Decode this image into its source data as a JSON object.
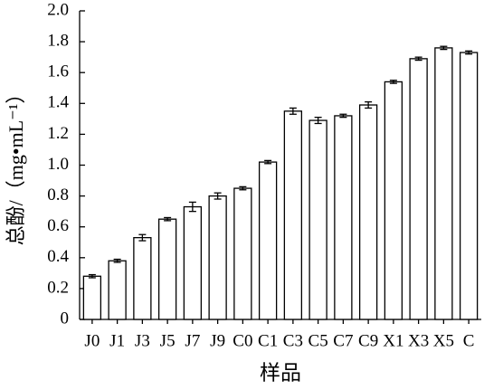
{
  "chart_data": {
    "type": "bar",
    "xlabel": "样品",
    "ylabel": "总酚/（mg•mL⁻¹）",
    "categories": [
      "J0",
      "J1",
      "J3",
      "J5",
      "J7",
      "J9",
      "C0",
      "C1",
      "C3",
      "C5",
      "C7",
      "C9",
      "X1",
      "X3",
      "X5",
      "C"
    ],
    "values": [
      0.28,
      0.38,
      0.53,
      0.65,
      0.73,
      0.8,
      0.85,
      1.02,
      1.35,
      1.29,
      1.32,
      1.39,
      1.54,
      1.69,
      1.76,
      1.73
    ],
    "errors": [
      0.01,
      0.01,
      0.02,
      0.01,
      0.03,
      0.02,
      0.01,
      0.01,
      0.02,
      0.02,
      0.01,
      0.02,
      0.01,
      0.01,
      0.01,
      0.01
    ],
    "color": "#ffffff",
    "ylim": [
      0,
      2
    ],
    "yticks": [
      0,
      0.2,
      0.4,
      0.6,
      0.8,
      {
        "value": 1,
        "label": "1.0"
      },
      1.2,
      1.4,
      1.6,
      1.8,
      {
        "value": 2,
        "label": "2.0"
      }
    ]
  }
}
